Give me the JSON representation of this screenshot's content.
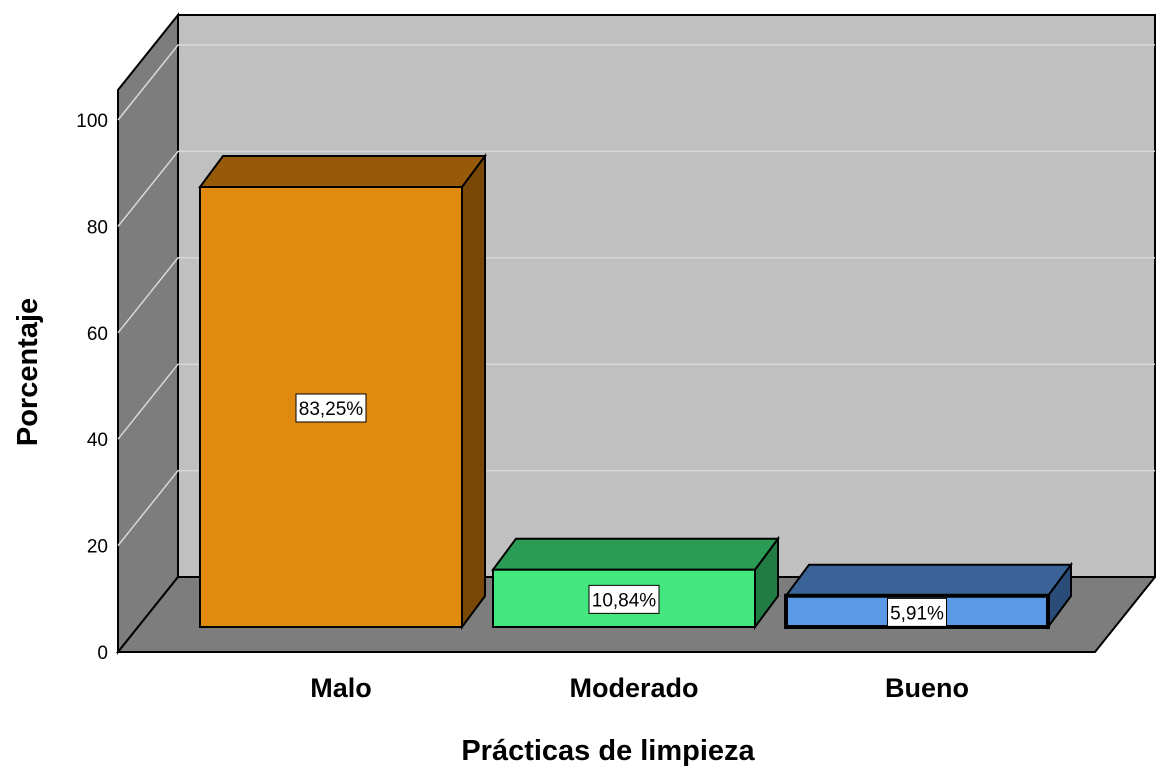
{
  "chart_data": {
    "type": "bar",
    "categories": [
      "Malo",
      "Moderado",
      "Bueno"
    ],
    "values": [
      83.25,
      10.84,
      5.91
    ],
    "data_labels": [
      "83,25%",
      "10,84%",
      "5,91%"
    ],
    "xlabel": "Prácticas de limpieza",
    "ylabel": "Porcentaje",
    "ylim": [
      0,
      100
    ],
    "yticks": [
      0,
      20,
      40,
      60,
      80,
      100
    ],
    "grid": true,
    "three_d": true,
    "colors": {
      "bars": [
        {
          "front": "#e08a0f",
          "top": "#975a08",
          "side": "#7a4806"
        },
        {
          "front": "#44e67e",
          "top": "#2a9c55",
          "side": "#207c43"
        },
        {
          "front": "#5a99e6",
          "top": "#3a6398",
          "side": "#2a4c78"
        }
      ],
      "back_wall": "#c0c0c0",
      "side_wall": "#7d7d7d",
      "floor": "#7d7d7d",
      "gridline": "#d8d8d8"
    }
  }
}
